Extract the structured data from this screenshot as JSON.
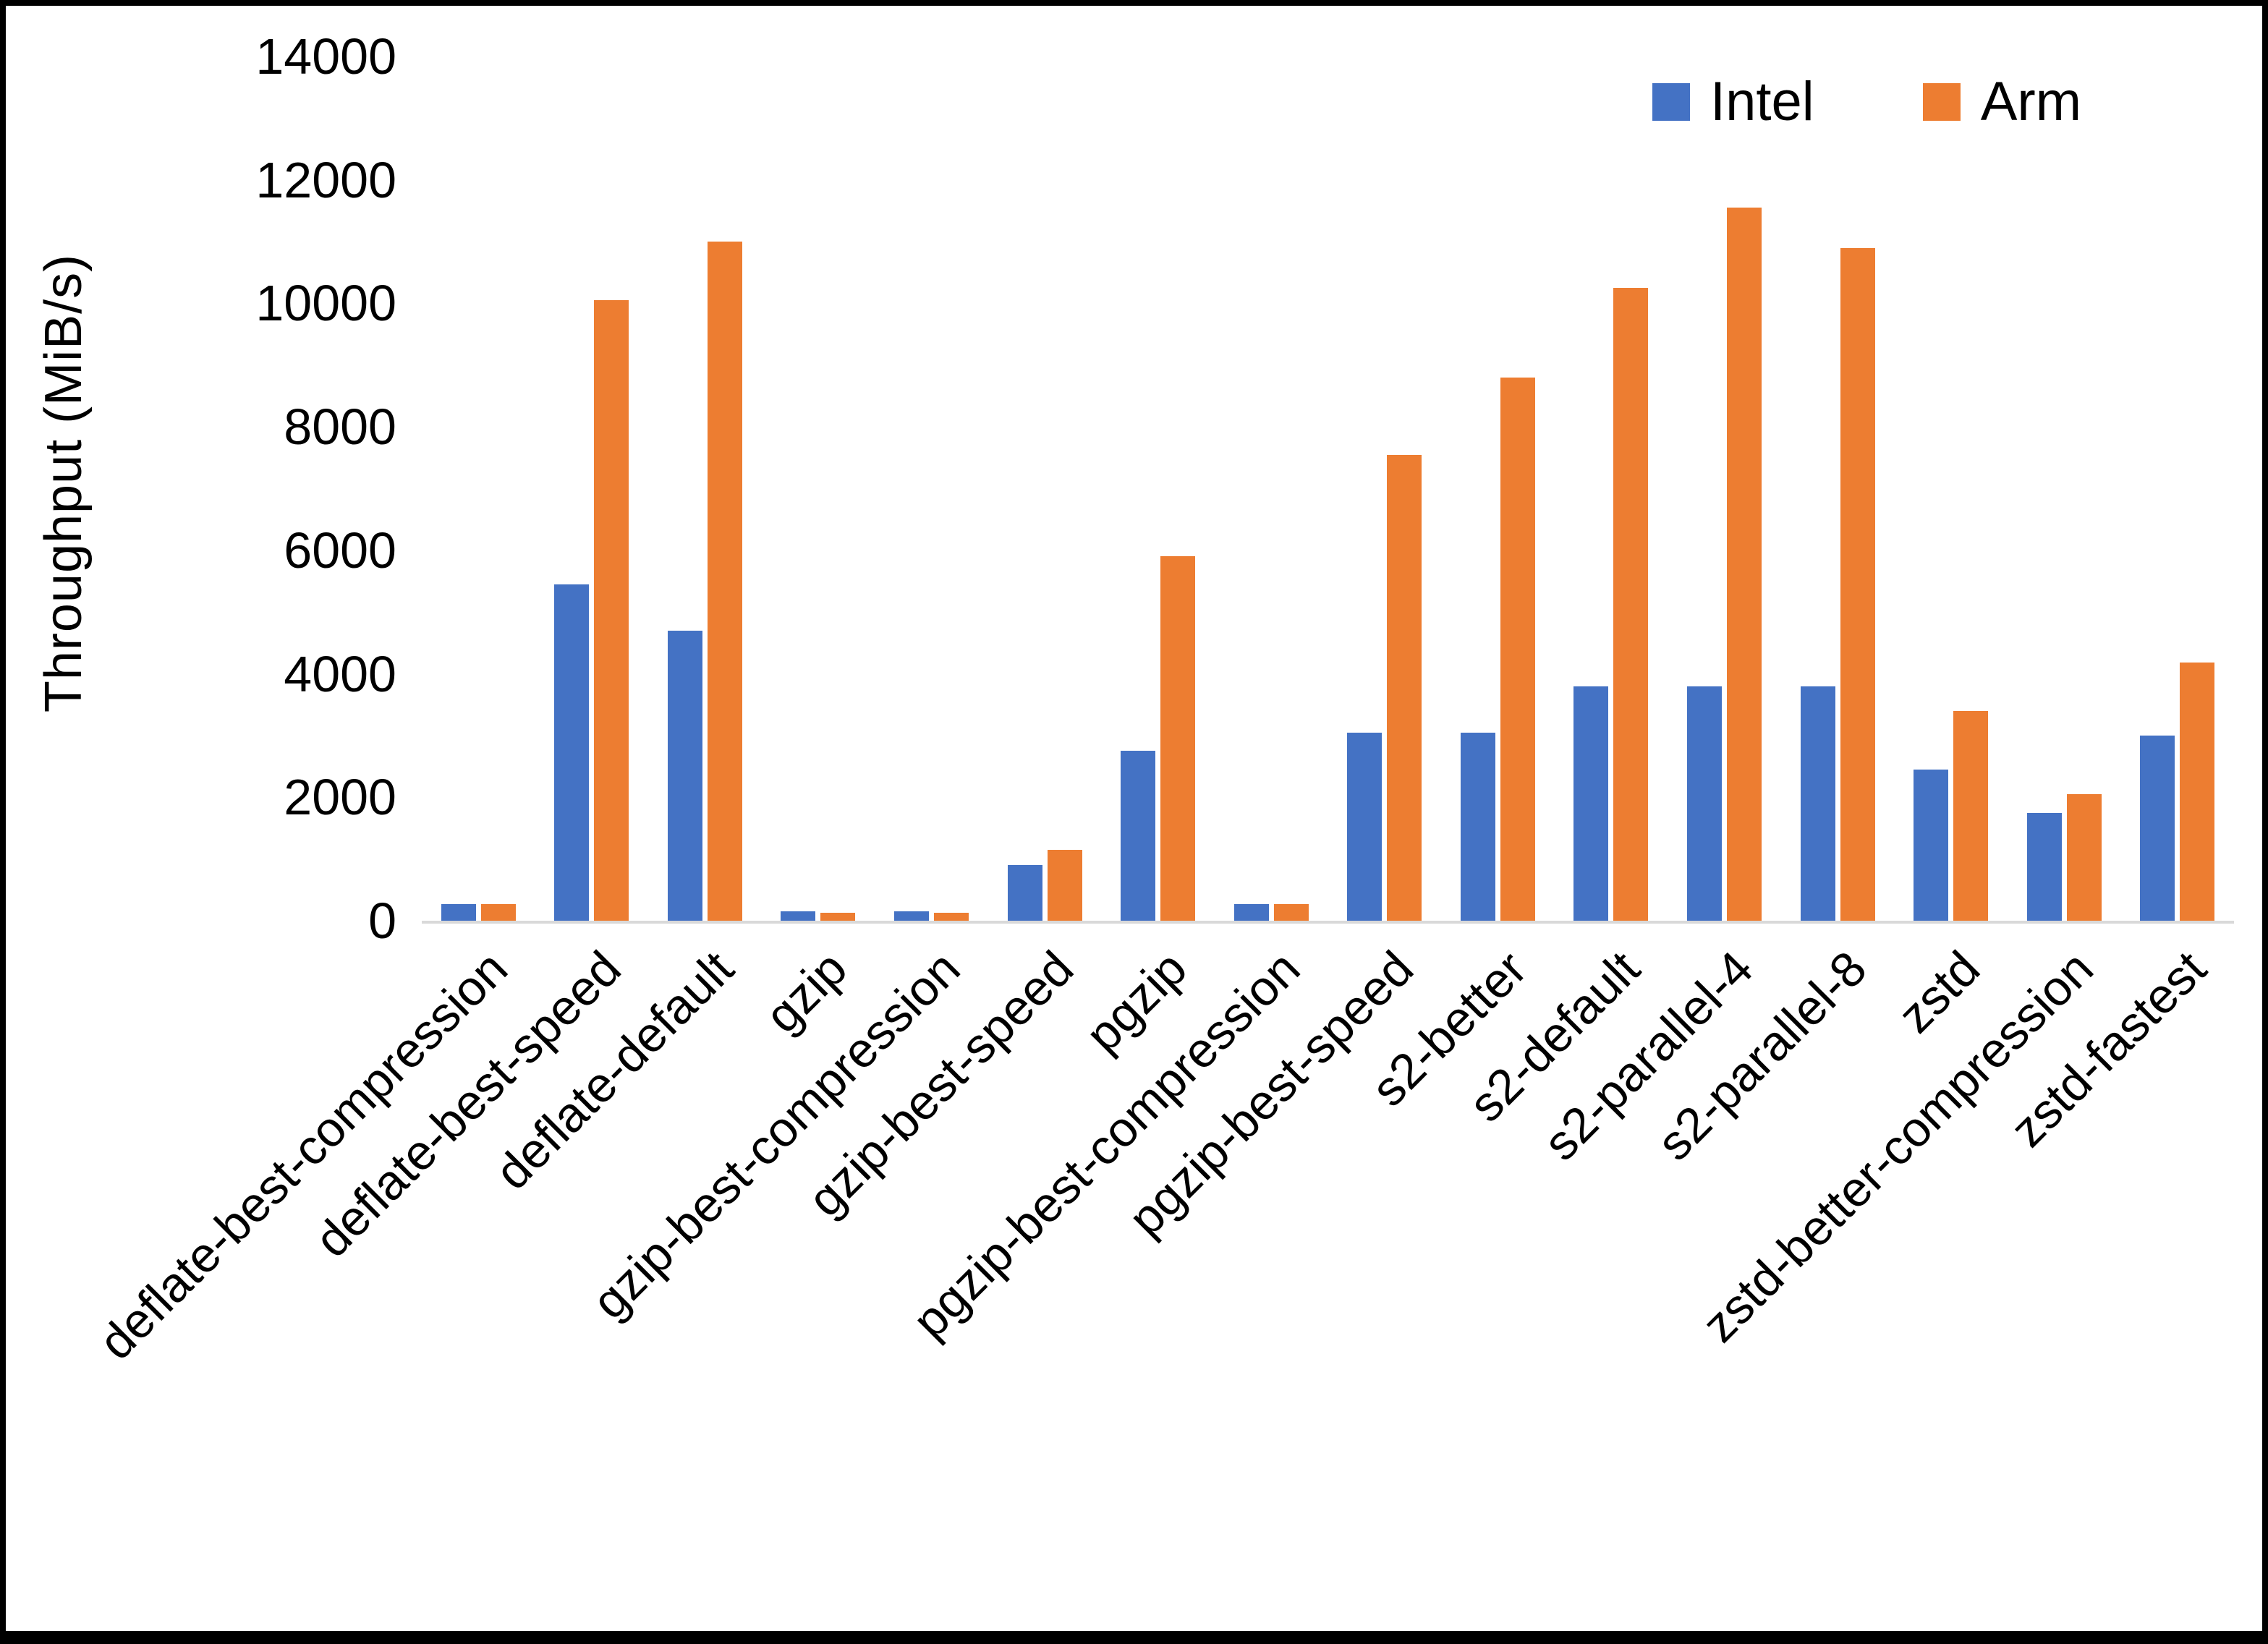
{
  "page": {
    "background": "#ffffff",
    "frame_color": "#000000",
    "axis_line_color": "#d9d9d9"
  },
  "chart_data": {
    "type": "bar",
    "title": "",
    "xlabel": "",
    "ylabel": "Throughput (MiB/s)",
    "ylim": [
      0,
      14000
    ],
    "yticks": [
      0,
      2000,
      4000,
      6000,
      8000,
      10000,
      12000,
      14000
    ],
    "grid": false,
    "legend_position": "top-right",
    "categories": [
      "deflate-best-compression",
      "deflate-best-speed",
      "deflate-default",
      "gzip",
      "gzip-best-compression",
      "gzip-best-speed",
      "pgzip",
      "pgzip-best-compression",
      "pgzip-best-speed",
      "s2-better",
      "s2-default",
      "s2-parallel-4",
      "s2-parallel-8",
      "zstd",
      "zstd-better-compression",
      "zstd-fastest"
    ],
    "series": [
      {
        "name": "Intel",
        "color": "#4472C4",
        "values": [
          270,
          5450,
          4700,
          150,
          150,
          900,
          2750,
          270,
          3050,
          3050,
          3800,
          3800,
          3800,
          2450,
          1750,
          3000
        ]
      },
      {
        "name": "Arm",
        "color": "#ED7D31",
        "values": [
          270,
          10050,
          11000,
          130,
          130,
          1150,
          5900,
          270,
          7550,
          8800,
          10250,
          11550,
          10900,
          3400,
          2050,
          4180
        ]
      }
    ]
  }
}
